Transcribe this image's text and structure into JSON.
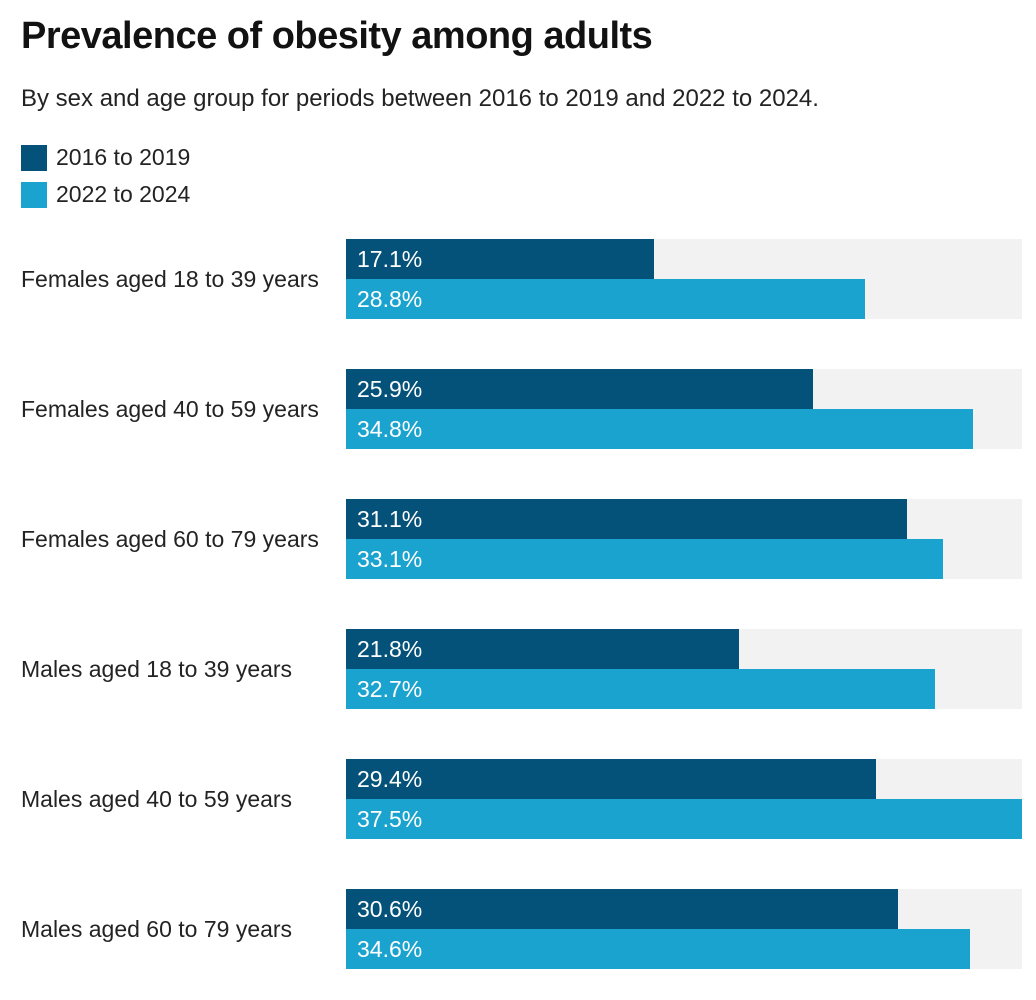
{
  "chart": {
    "title": "Prevalence of obesity among adults",
    "subtitle": "By sex and age group for periods between 2016 to 2019 and 2022 to 2024."
  },
  "legend": {
    "items": [
      {
        "label": "2016 to 2019",
        "color": "#045279"
      },
      {
        "label": "2022 to 2024",
        "color": "#1BA3CF"
      }
    ]
  },
  "chart_data": {
    "type": "bar",
    "orientation": "horizontal",
    "title": "Prevalence of obesity among adults",
    "subtitle": "By sex and age group for periods between 2016 to 2019 and 2022 to 2024.",
    "categories": [
      "Females aged 18 to 39 years",
      "Females aged 40 to 59 years",
      "Females aged 60 to 79 years",
      "Males aged 18 to 39 years",
      "Males aged 40 to 59 years",
      "Males aged 60 to 79 years"
    ],
    "series": [
      {
        "name": "2016 to 2019",
        "color": "#045279",
        "values": [
          17.1,
          25.9,
          31.1,
          21.8,
          29.4,
          30.6
        ]
      },
      {
        "name": "2022 to 2024",
        "color": "#1BA3CF",
        "values": [
          28.8,
          34.8,
          33.1,
          32.7,
          37.5,
          34.6
        ]
      }
    ],
    "value_suffix": "%",
    "xlabel": "",
    "ylabel": "",
    "xlim": [
      0,
      37.5
    ],
    "grid": false,
    "legend_position": "top-left",
    "data_labels": "inside-start",
    "track_color": "#F2F2F2"
  }
}
